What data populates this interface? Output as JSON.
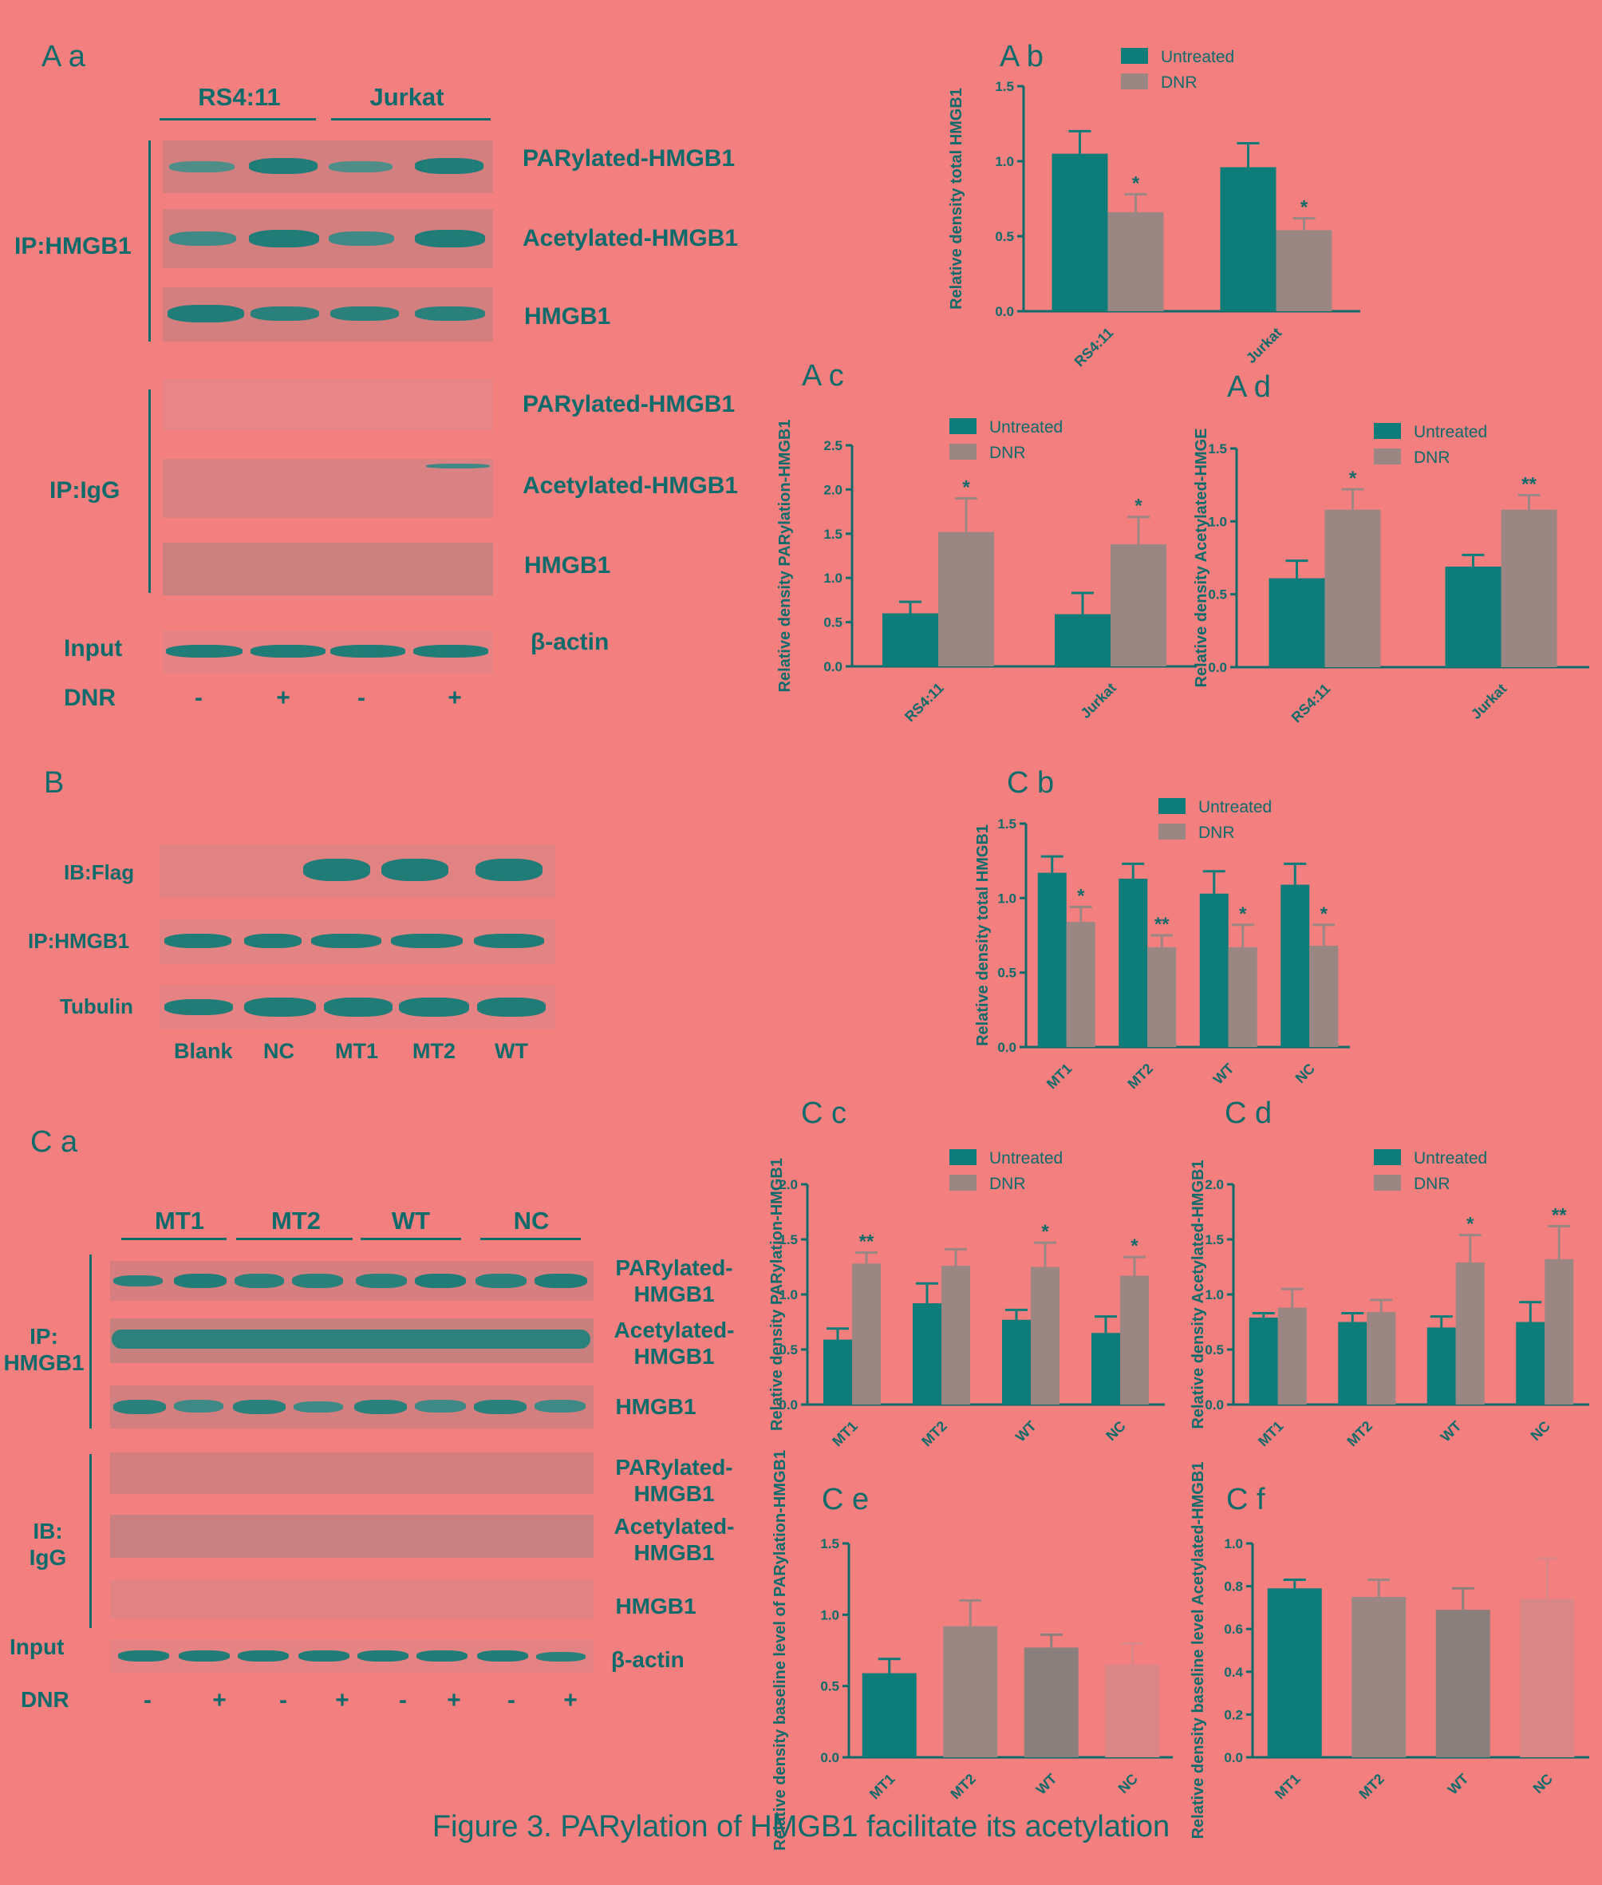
{
  "colors": {
    "teal": "#0e7d7a",
    "gray": "#9a8784",
    "dark_gray": "#8b7f7e",
    "pink": "#d98686",
    "text": "#0e6b6b",
    "background": "#f47f7f"
  },
  "panels": {
    "Aa": "A a",
    "Ab": "A b",
    "Ac": "A c",
    "Ad": "A d",
    "B": "B",
    "Ca": "C a",
    "Cb": "C b",
    "Cc": "C c",
    "Cd": "C d",
    "Ce": "C e",
    "Cf": "C f"
  },
  "blotA": {
    "cell_lines": [
      "RS4:11",
      "Jurkat"
    ],
    "ip_hmgb1_label": "IP:HMGB1",
    "ip_igg_label": "IP:IgG",
    "input_label": "Input",
    "dnr_label": "DNR",
    "rows_ip": [
      "PARylated-HMGB1",
      "Acetylated-HMGB1",
      "HMGB1"
    ],
    "rows_igg": [
      "PARylated-HMGB1",
      "Acetylated-HMGB1",
      "HMGB1"
    ],
    "input_row": "β-actin",
    "dnr_signs": [
      "-",
      "+",
      "-",
      "+"
    ]
  },
  "blotB": {
    "rows": [
      "IB:Flag",
      "IP:HMGB1",
      "Tubulin"
    ],
    "lanes": [
      "Blank",
      "NC",
      "MT1",
      "MT2",
      "WT"
    ]
  },
  "blotC": {
    "groups": [
      "MT1",
      "MT2",
      "WT",
      "NC"
    ],
    "ip_label": "IP:\nHMGB1",
    "ib_label": "IB:\nIgG",
    "input_label": "Input",
    "dnr_label": "DNR",
    "rows_ip": [
      "PARylated-\nHMGB1",
      "Acetylated-\nHMGB1",
      "HMGB1"
    ],
    "rows_igg": [
      "PARylated-\nHMGB1",
      "Acetylated-\nHMGB1",
      "HMGB1"
    ],
    "input_row": "β-actin",
    "dnr_signs": [
      "-",
      "+",
      "-",
      "+",
      "-",
      "+",
      "-",
      "+"
    ]
  },
  "chart_data": [
    {
      "id": "Ab",
      "type": "bar",
      "ylabel": "Relative density total HMGB1",
      "categories": [
        "RS4:11",
        "Jurkat"
      ],
      "ylim": [
        0,
        1.5
      ],
      "yticks": [
        "0.0",
        "0.5",
        "1.0",
        "1.5"
      ],
      "legend": [
        "Untreated",
        "DNR"
      ],
      "series": [
        {
          "name": "Untreated",
          "values": [
            1.05,
            0.96
          ],
          "err": [
            0.15,
            0.16
          ],
          "sig": [
            "",
            ""
          ]
        },
        {
          "name": "DNR",
          "values": [
            0.66,
            0.54
          ],
          "err": [
            0.12,
            0.08
          ],
          "sig": [
            "*",
            "*"
          ]
        }
      ]
    },
    {
      "id": "Ac",
      "type": "bar",
      "ylabel": "Relative density PARylation-HMGB1",
      "categories": [
        "RS4:11",
        "Jurkat"
      ],
      "ylim": [
        0,
        2.5
      ],
      "yticks": [
        "0.0",
        "0.5",
        "1.0",
        "1.5",
        "2.0",
        "2.5"
      ],
      "legend": [
        "Untreated",
        "DNR"
      ],
      "series": [
        {
          "name": "Untreated",
          "values": [
            0.6,
            0.59
          ],
          "err": [
            0.13,
            0.24
          ],
          "sig": [
            "",
            ""
          ]
        },
        {
          "name": "DNR",
          "values": [
            1.52,
            1.38
          ],
          "err": [
            0.38,
            0.31
          ],
          "sig": [
            "*",
            "*"
          ]
        }
      ]
    },
    {
      "id": "Ad",
      "type": "bar",
      "ylabel": "Relative density Acetylated-HMGE",
      "categories": [
        "RS4:11",
        "Jurkat"
      ],
      "ylim": [
        0,
        1.5
      ],
      "yticks": [
        "0.0",
        "0.5",
        "1.0",
        "1.5"
      ],
      "legend": [
        "Untreated",
        "DNR"
      ],
      "series": [
        {
          "name": "Untreated",
          "values": [
            0.61,
            0.69
          ],
          "err": [
            0.12,
            0.08
          ],
          "sig": [
            "",
            ""
          ]
        },
        {
          "name": "DNR",
          "values": [
            1.08,
            1.08
          ],
          "err": [
            0.14,
            0.1
          ],
          "sig": [
            "*",
            "**"
          ]
        }
      ]
    },
    {
      "id": "Cb",
      "type": "bar",
      "ylabel": "Relative density total HMGB1",
      "categories": [
        "MT1",
        "MT2",
        "WT",
        "NC"
      ],
      "ylim": [
        0,
        1.5
      ],
      "yticks": [
        "0.0",
        "0.5",
        "1.0",
        "1.5"
      ],
      "legend": [
        "Untreated",
        "DNR"
      ],
      "series": [
        {
          "name": "Untreated",
          "values": [
            1.17,
            1.13,
            1.03,
            1.09
          ],
          "err": [
            0.11,
            0.1,
            0.15,
            0.14
          ],
          "sig": [
            "",
            "",
            "",
            ""
          ]
        },
        {
          "name": "DNR",
          "values": [
            0.84,
            0.67,
            0.67,
            0.68
          ],
          "err": [
            0.1,
            0.08,
            0.15,
            0.14
          ],
          "sig": [
            "*",
            "**",
            "*",
            "*"
          ]
        }
      ]
    },
    {
      "id": "Cc",
      "type": "bar",
      "ylabel": "Relative density PARylation-HMGB1",
      "categories": [
        "MT1",
        "MT2",
        "WT",
        "NC"
      ],
      "ylim": [
        0,
        2.0
      ],
      "yticks": [
        "0.0",
        "0.5",
        "1.0",
        "1.5",
        "2.0"
      ],
      "legend": [
        "Untreated",
        "DNR"
      ],
      "series": [
        {
          "name": "Untreated",
          "values": [
            0.59,
            0.92,
            0.77,
            0.65
          ],
          "err": [
            0.1,
            0.18,
            0.09,
            0.15
          ],
          "sig": [
            "",
            "",
            "",
            ""
          ]
        },
        {
          "name": "DNR",
          "values": [
            1.28,
            1.26,
            1.25,
            1.17
          ],
          "err": [
            0.1,
            0.15,
            0.22,
            0.17
          ],
          "sig": [
            "**",
            "",
            "*",
            "*"
          ]
        }
      ]
    },
    {
      "id": "Cd",
      "type": "bar",
      "ylabel": "Relative density Acetylated-HMGB1",
      "categories": [
        "MT1",
        "MT2",
        "WT",
        "NC"
      ],
      "ylim": [
        0,
        2.0
      ],
      "yticks": [
        "0.0",
        "0.5",
        "1.0",
        "1.5",
        "2.0"
      ],
      "legend": [
        "Untreated",
        "DNR"
      ],
      "series": [
        {
          "name": "Untreated",
          "values": [
            0.79,
            0.75,
            0.7,
            0.75
          ],
          "err": [
            0.04,
            0.08,
            0.1,
            0.18
          ],
          "sig": [
            "",
            "",
            "",
            ""
          ]
        },
        {
          "name": "DNR",
          "values": [
            0.88,
            0.84,
            1.29,
            1.32
          ],
          "err": [
            0.17,
            0.11,
            0.25,
            0.3
          ],
          "sig": [
            "",
            "",
            "*",
            "**"
          ]
        }
      ]
    },
    {
      "id": "Ce",
      "type": "bar",
      "ylabel": "Relative density baseline level of PARylation-HMGB1",
      "categories": [
        "MT1",
        "MT2",
        "WT",
        "NC"
      ],
      "ylim": [
        0,
        1.5
      ],
      "yticks": [
        "0.0",
        "0.5",
        "1.0",
        "1.5"
      ],
      "values": [
        0.59,
        0.92,
        0.77,
        0.65
      ],
      "err": [
        0.1,
        0.18,
        0.09,
        0.15
      ],
      "bar_colors": [
        "#0e7d7a",
        "#9a8784",
        "#8b7f7e",
        "#d98686"
      ]
    },
    {
      "id": "Cf",
      "type": "bar",
      "ylabel": "Relative density baseline level Acetylated-HMGB1",
      "categories": [
        "MT1",
        "MT2",
        "WT",
        "NC"
      ],
      "ylim": [
        0,
        1.0
      ],
      "yticks": [
        "0.0",
        "0.2",
        "0.4",
        "0.6",
        "0.8",
        "1.0"
      ],
      "values": [
        0.79,
        0.75,
        0.69,
        0.74
      ],
      "err": [
        0.04,
        0.08,
        0.1,
        0.19
      ],
      "bar_colors": [
        "#0e7d7a",
        "#9a8784",
        "#8b7f7e",
        "#d98686"
      ]
    }
  ],
  "caption": "Figure 3. PARylation of HMGB1 facilitate its acetylation"
}
